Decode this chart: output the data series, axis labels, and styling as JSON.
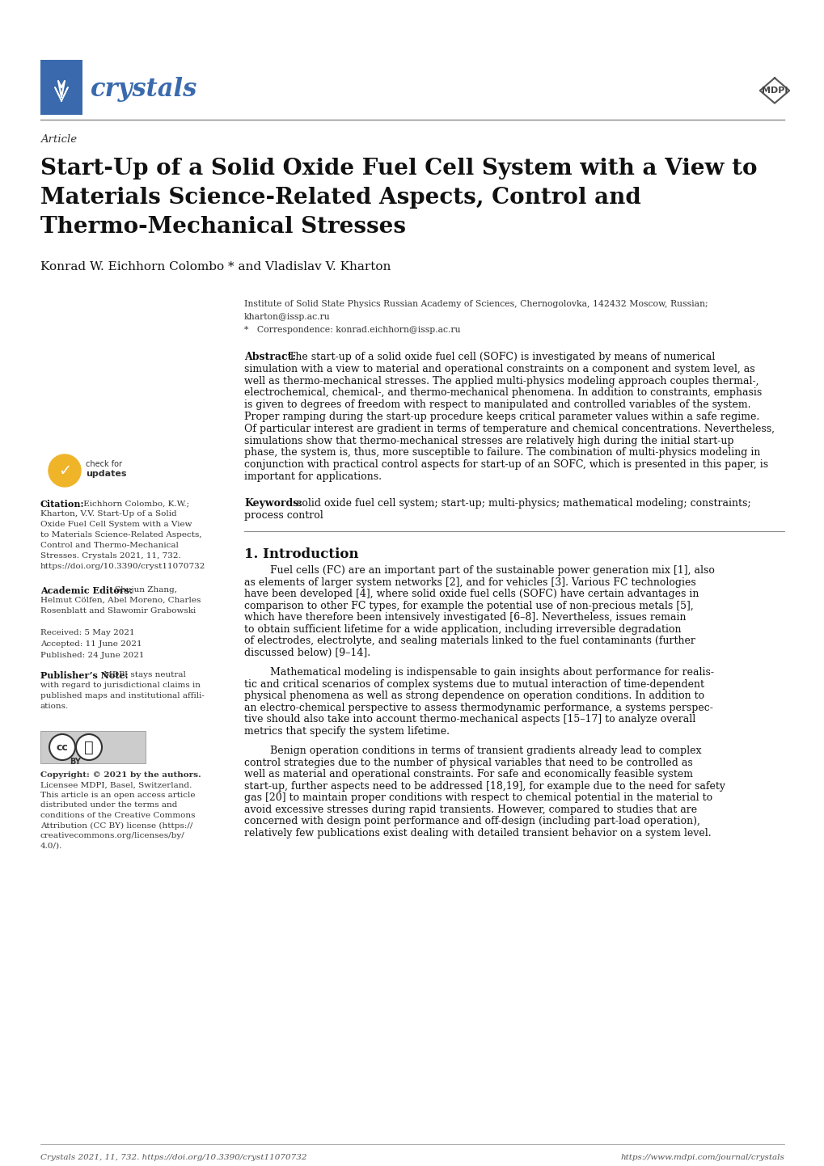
{
  "page_width": 10.2,
  "page_height": 14.42,
  "bg_color": "#ffffff",
  "header_logo_text": "crystals",
  "header_logo_color": "#3a6aad",
  "mdpi_text": "MDPI",
  "article_label": "Article",
  "title_line1": "Start-Up of a Solid Oxide Fuel Cell System with a View to",
  "title_line2": "Materials Science-Related Aspects, Control and",
  "title_line3": "Thermo-Mechanical Stresses",
  "authors": "Konrad W. Eichhorn Colombo * and Vladislav V. Kharton",
  "affiliation_line1": "Institute of Solid State Physics Russian Academy of Sciences, Chernogolovka, 142432 Moscow, Russian;",
  "affiliation_line2": "kharton@issp.ac.ru",
  "affiliation_line3": "*   Correspondence: konrad.eichhorn@issp.ac.ru",
  "abstract_label": "Abstract:",
  "abstract_body": "The start-up of a solid oxide fuel cell (SOFC) is investigated by means of numerical\nsimulation with a view to material and operational constraints on a component and system level, as\nwell as thermo-mechanical stresses. The applied multi-physics modeling approach couples thermal-,\nelectrochemical, chemical-, and thermo-mechanical phenomena. In addition to constraints, emphasis\nis given to degrees of freedom with respect to manipulated and controlled variables of the system.\nProper ramping during the start-up procedure keeps critical parameter values within a safe regime.\nOf particular interest are gradient in terms of temperature and chemical concentrations. Nevertheless,\nsimulations show that thermo-mechanical stresses are relatively high during the initial start-up\nphase, the system is, thus, more susceptible to failure. The combination of multi-physics modeling in\nconjunction with practical control aspects for start-up of an SOFC, which is presented in this paper, is\nimportant for applications.",
  "keywords_label": "Keywords:",
  "keywords_body": "solid oxide fuel cell system; start-up; multi-physics; mathematical modeling; constraints;\nprocess control",
  "section1_title": "1. Introduction",
  "intro_p1_lines": [
    "        Fuel cells (FC) are an important part of the sustainable power generation mix [1], also",
    "as elements of larger system networks [2], and for vehicles [3]. Various FC technologies",
    "have been developed [4], where solid oxide fuel cells (SOFC) have certain advantages in",
    "comparison to other FC types, for example the potential use of non-precious metals [5],",
    "which have therefore been intensively investigated [6–8]. Nevertheless, issues remain",
    "to obtain sufficient lifetime for a wide application, including irreversible degradation",
    "of electrodes, electrolyte, and sealing materials linked to the fuel contaminants (further",
    "discussed below) [9–14]."
  ],
  "intro_p2_lines": [
    "        Mathematical modeling is indispensable to gain insights about performance for realis-",
    "tic and critical scenarios of complex systems due to mutual interaction of time-dependent",
    "physical phenomena as well as strong dependence on operation conditions. In addition to",
    "an electro-chemical perspective to assess thermodynamic performance, a systems perspec-",
    "tive should also take into account thermo-mechanical aspects [15–17] to analyze overall",
    "metrics that specify the system lifetime."
  ],
  "intro_p3_lines": [
    "        Benign operation conditions in terms of transient gradients already lead to complex",
    "control strategies due to the number of physical variables that need to be controlled as",
    "well as material and operational constraints. For safe and economically feasible system",
    "start-up, further aspects need to be addressed [18,19], for example due to the need for safety",
    "gas [20] to maintain proper conditions with respect to chemical potential in the material to",
    "avoid excessive stresses during rapid transients. However, compared to studies that are",
    "concerned with design point performance and off-design (including part-load operation),",
    "relatively few publications exist dealing with detailed transient behavior on a system level."
  ],
  "citation_label": "Citation:",
  "citation_lines": [
    " Eichhorn Colombo, K.W.;",
    "Kharton, V.V. Start-Up of a Solid",
    "Oxide Fuel Cell System with a View",
    "to Materials Science-Related Aspects,",
    "Control and Thermo-Mechanical",
    "Stresses. Crystals 2021, 11, 732.",
    "https://doi.org/10.3390/cryst11070732"
  ],
  "editors_label": "Academic Editors:",
  "editors_lines": [
    " Shujun Zhang,",
    "Helmut Cölfen, Abel Moreno, Charles",
    "Rosenblatt and Sławomir Grabowski"
  ],
  "received_text": "Received: 5 May 2021",
  "accepted_text": "Accepted: 11 June 2021",
  "published_text": "Published: 24 June 2021",
  "publisher_note_label": "Publisher’s Note:",
  "publisher_note_lines": [
    " MDPI stays neutral",
    "with regard to jurisdictional claims in",
    "published maps and institutional affili-",
    "ations."
  ],
  "copyright_lines": [
    "Copyright: © 2021 by the authors.",
    "Licensee MDPI, Basel, Switzerland.",
    "This article is an open access article",
    "distributed under the terms and",
    "conditions of the Creative Commons",
    "Attribution (CC BY) license (https://",
    "creativecommons.org/licenses/by/",
    "4.0/)."
  ],
  "footer_left": "Crystals 2021, 11, 732. https://doi.org/10.3390/cryst11070732",
  "footer_right": "https://www.mdpi.com/journal/crystals",
  "sep_color": "#888888",
  "blue_color": "#3a6aad",
  "dark_color": "#111111",
  "mid_color": "#444444",
  "light_color": "#555555"
}
